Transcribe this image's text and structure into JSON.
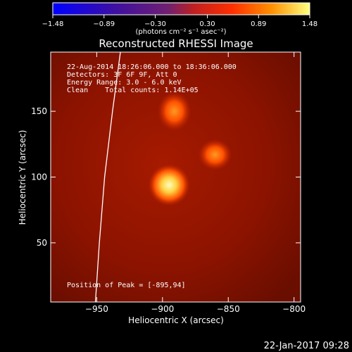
{
  "chart_data": {
    "type": "heatmap",
    "title": "Reconstructed RHESSI Image",
    "xlabel": "Heliocentric X (arcsec)",
    "ylabel": "Heliocentric Y (arcsec)",
    "xlim": [
      -985,
      -795
    ],
    "ylim": [
      5,
      195
    ],
    "x_ticks": [
      -950,
      -900,
      -850,
      -800
    ],
    "x_tick_labels": [
      "−950",
      "−900",
      "−850",
      "−800"
    ],
    "y_ticks": [
      50,
      100,
      150
    ],
    "y_tick_labels": [
      "50",
      "100",
      "150"
    ],
    "colorbar": {
      "range": [
        -1.48,
        1.48
      ],
      "ticks": [
        -1.48,
        -0.89,
        -0.3,
        0.3,
        0.89,
        1.48
      ],
      "tick_labels": [
        "−1.48",
        "−0.89",
        "−0.30",
        "0.30",
        "0.89",
        "1.48"
      ],
      "unit": "(photons cm⁻² s⁻¹ asec⁻²)"
    },
    "sources": [
      {
        "x": -895,
        "y": 94,
        "peak": 1.48
      },
      {
        "x": -891,
        "y": 150,
        "peak": 0.55
      },
      {
        "x": -860,
        "y": 117,
        "peak": 0.6
      }
    ],
    "limb": [
      [
        -951,
        5
      ],
      [
        -948,
        50
      ],
      [
        -944,
        100
      ],
      [
        -938,
        150
      ],
      [
        -932,
        195
      ]
    ],
    "annotations": {
      "line1": "22-Aug-2014 18:26:06.000 to 18:36:06.000",
      "line2": "Detectors: 3F 6F 9F, Att 0",
      "line3": "Energy Range: 3.0 - 6.0 keV",
      "line4": "Clean    Total counts: 1.14E+05",
      "peak_position": "Position of Peak = [-895,94]"
    },
    "footer_date": "22-Jan-2017 09:28"
  }
}
